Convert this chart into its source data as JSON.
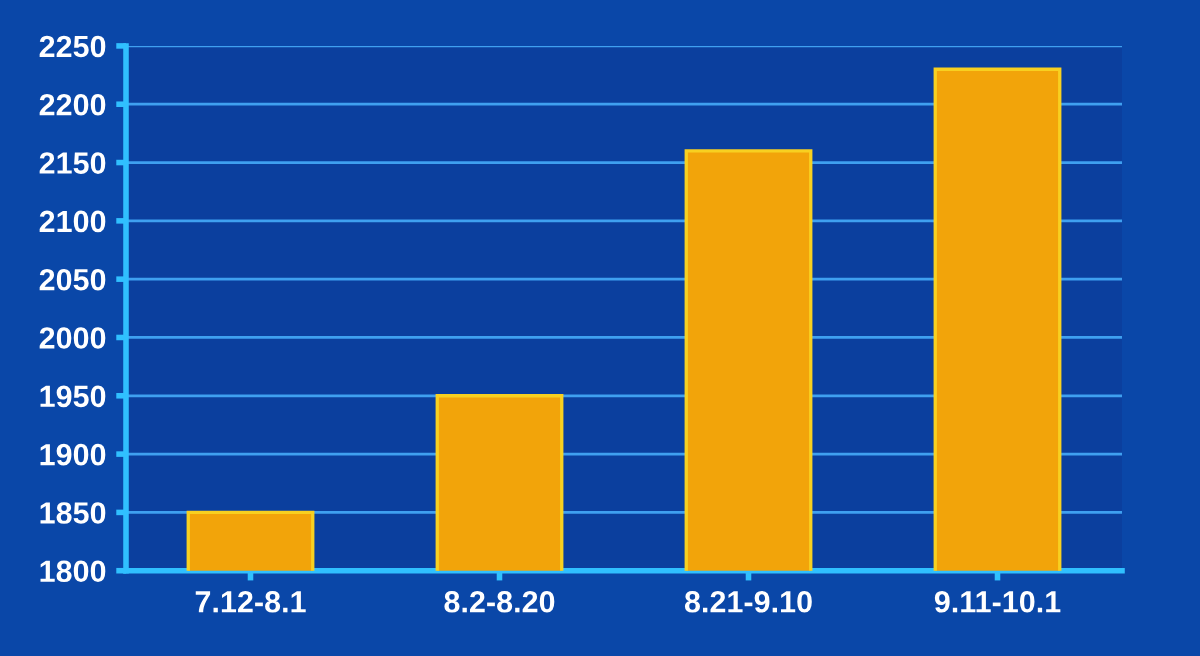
{
  "chart_data": {
    "type": "bar",
    "categories": [
      "7.12-8.1",
      "8.2-8.20",
      "8.21-9.10",
      "9.11-10.1"
    ],
    "values": [
      1850,
      1950,
      2160,
      2230
    ],
    "color": "#f2a40a",
    "ylim": [
      1800,
      2250
    ],
    "yticks": [
      1800,
      1850,
      1900,
      1950,
      2000,
      2050,
      2100,
      2150,
      2200,
      2250
    ],
    "grid": "y"
  }
}
